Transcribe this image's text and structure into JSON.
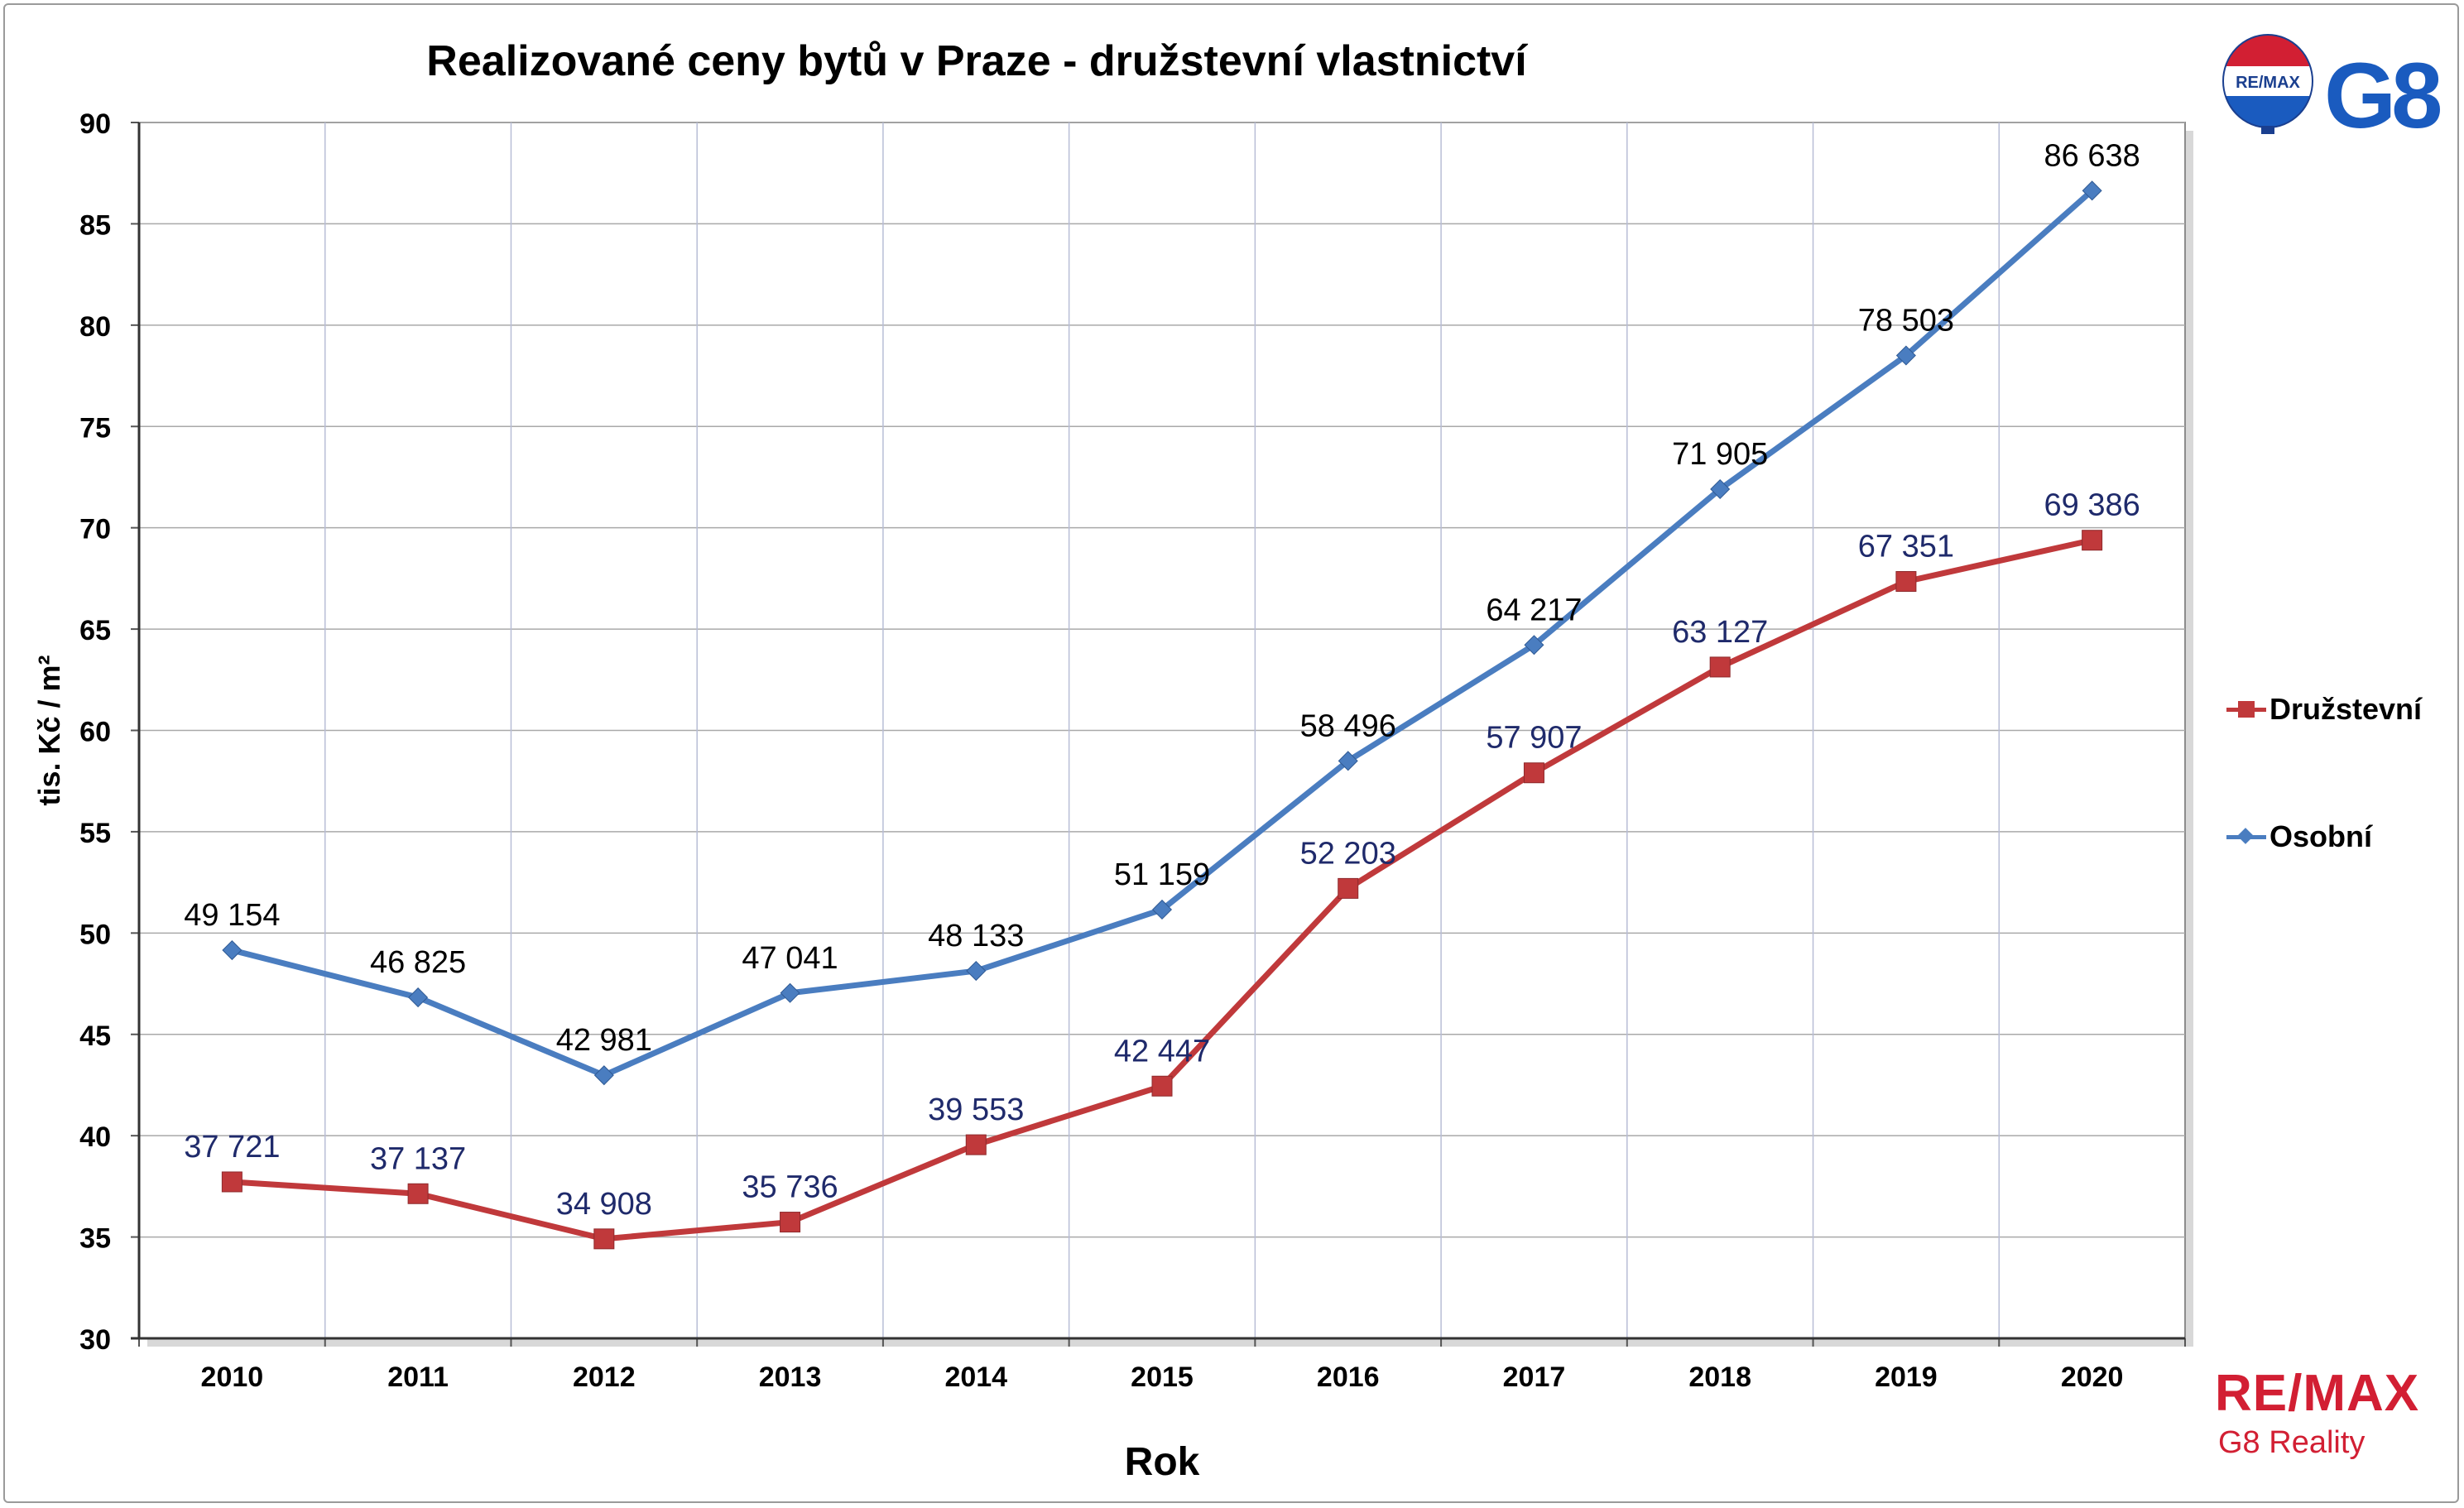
{
  "chart_data": {
    "type": "line",
    "title": "Realizované ceny bytů v Praze - družstevní vlastnictví",
    "xlabel": "Rok",
    "ylabel": "tis. Kč / m²",
    "ylim": [
      30,
      90
    ],
    "yticks": [
      30,
      35,
      40,
      45,
      50,
      55,
      60,
      65,
      70,
      75,
      80,
      85,
      90
    ],
    "categories": [
      "2010",
      "2011",
      "2012",
      "2013",
      "2014",
      "2015",
      "2016",
      "2017",
      "2018",
      "2019",
      "2020"
    ],
    "grid": true,
    "legend_position": "right",
    "series": [
      {
        "name": "Družstevní",
        "color": "#c0393b",
        "marker": "square",
        "values": [
          37.721,
          37.137,
          34.908,
          35.736,
          39.553,
          42.447,
          52.203,
          57.907,
          63.127,
          67.351,
          69.386
        ],
        "labels": [
          "37 721",
          "37 137",
          "34 908",
          "35 736",
          "39 553",
          "42 447",
          "52 203",
          "57 907",
          "63 127",
          "67 351",
          "69 386"
        ],
        "label_color": "#1f2a6b"
      },
      {
        "name": "Osobní",
        "color": "#4a7dc0",
        "marker": "diamond",
        "values": [
          49.154,
          46.825,
          42.981,
          47.041,
          48.133,
          51.159,
          58.496,
          64.217,
          71.905,
          78.503,
          86.638
        ],
        "labels": [
          "49 154",
          "46 825",
          "42 981",
          "47 041",
          "48 133",
          "51 159",
          "58 496",
          "64 217",
          "71 905",
          "78 503",
          "86 638"
        ],
        "label_color": "#000000"
      }
    ]
  },
  "logos": {
    "top_right": "G8",
    "top_right_badge": "RE/MAX",
    "bottom_right": "RE/MAX",
    "bottom_right_sub": "G8 Reality"
  }
}
